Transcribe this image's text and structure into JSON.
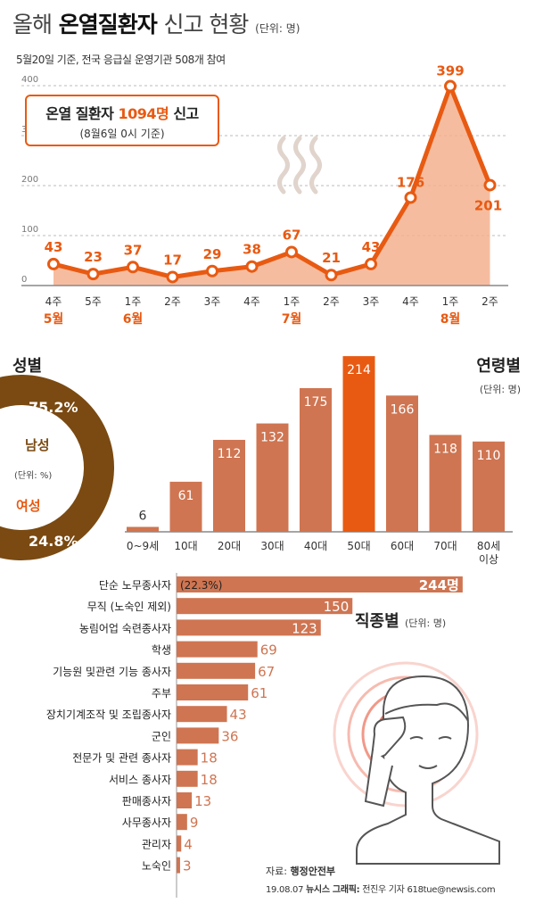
{
  "header": {
    "title_prefix": "올해",
    "title_main": "온열질환자",
    "title_suffix": "신고 현황",
    "title_unit": "(단위: 명)",
    "subtitle": "5월20일 기준, 전국 응급실 운영기관 508개 참여"
  },
  "callout": {
    "line1_prefix": "온열 질환자",
    "line1_value": "1094명",
    "line1_suffix": "신고",
    "line2": "(8월6일 0시 기준)"
  },
  "colors": {
    "accent": "#e85a12",
    "area_fill": "#f4b08e",
    "bar": "#cf7552",
    "bar_highlight": "#e85a12",
    "male": "#7a4a12",
    "female": "#e85a12"
  },
  "gender": {
    "title": "성별",
    "male_label": "남성",
    "male_pct": "75.2%",
    "male_value": 75.2,
    "female_label": "여성",
    "female_pct": "24.8%",
    "female_value": 24.8,
    "unit": "(단위: %)"
  },
  "age_titles": {
    "title": "연령별",
    "unit": "(단위: 명)"
  },
  "job_titles": {
    "title": "직종별",
    "unit": "(단위: 명)"
  },
  "source": {
    "label": "자료:",
    "org": "행정안전부",
    "date": "19.08.07",
    "agency": "뉴시스 그래픽:",
    "credit": "전진우 기자 618tue@newsis.com"
  },
  "chart_data": [
    {
      "type": "area",
      "x": [
        "4주",
        "5주",
        "1주",
        "2주",
        "3주",
        "4주",
        "1주",
        "2주",
        "3주",
        "4주",
        "1주",
        "2주"
      ],
      "months": [
        {
          "label": "5월",
          "at": 0
        },
        {
          "label": "6월",
          "at": 2
        },
        {
          "label": "7월",
          "at": 6
        },
        {
          "label": "8월",
          "at": 10
        }
      ],
      "values": [
        43,
        23,
        37,
        17,
        29,
        38,
        67,
        21,
        43,
        176,
        399,
        201
      ],
      "yticks": [
        "0",
        "100",
        "200",
        "300",
        "400"
      ],
      "ylim": [
        0,
        420
      ]
    },
    {
      "type": "pie",
      "labels": [
        "남성",
        "여성"
      ],
      "values": [
        75.2,
        24.8
      ]
    },
    {
      "type": "bar",
      "categories": [
        "0~9세",
        "10대",
        "20대",
        "30대",
        "40대",
        "50대",
        "60대",
        "70대",
        "80세 이상"
      ],
      "values": [
        6,
        61,
        112,
        132,
        175,
        214,
        166,
        118,
        110
      ],
      "highlight": "50대"
    },
    {
      "type": "bar",
      "orientation": "horizontal",
      "categories": [
        "단순 노무종사자",
        "무직 (노숙인 제외)",
        "농림어업 숙련종사자",
        "학생",
        "기능원 및관련 기능 종사자",
        "주부",
        "장치기계조작 및 조립종사자",
        "군인",
        "전문가 및 관련 종사자",
        "서비스 종사자",
        "판매종사자",
        "사무종사자",
        "관리자",
        "노숙인"
      ],
      "values": [
        244,
        150,
        123,
        69,
        67,
        61,
        43,
        36,
        18,
        18,
        13,
        9,
        4,
        3
      ],
      "value_labels": [
        "244명",
        "150",
        "123",
        "69",
        "67",
        "61",
        "43",
        "36",
        "18",
        "18",
        "13",
        "9",
        "4",
        "3"
      ],
      "annotation": "(22.3%)"
    }
  ]
}
